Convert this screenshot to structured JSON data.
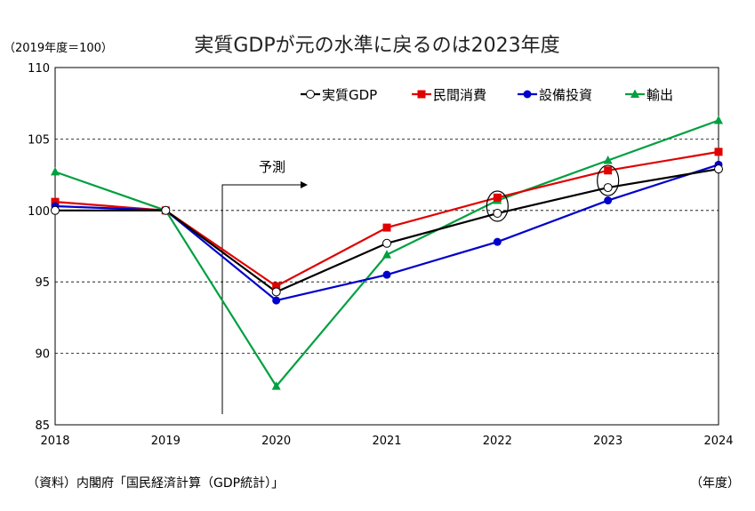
{
  "chart_data": {
    "type": "line",
    "title": "実質GDPが元の水準に戻るのは2023年度",
    "unit_note": "（2019年度＝100）",
    "x_unit": "（年度）",
    "source": "（資料）内閣府「国民経済計算（GDP統計）」",
    "forecast_label": "予測",
    "x": [
      "2018",
      "2019",
      "2020",
      "2021",
      "2022",
      "2023",
      "2024"
    ],
    "ylim": [
      85,
      110
    ],
    "yticks": [
      "85",
      "90",
      "95",
      "100",
      "105",
      "110"
    ],
    "grid": "horizontal-dashed",
    "legend_position": "top-right",
    "series": [
      {
        "name": "実質GDP",
        "color": "#000000",
        "marker": "circle-open",
        "values": [
          100.0,
          100.0,
          94.3,
          97.7,
          99.8,
          101.6,
          102.9
        ]
      },
      {
        "name": "民間消費",
        "color": "#e00000",
        "marker": "square",
        "values": [
          100.6,
          100.0,
          94.7,
          98.8,
          100.9,
          102.8,
          104.1
        ]
      },
      {
        "name": "設備投資",
        "color": "#0000cc",
        "marker": "circle",
        "values": [
          100.3,
          100.0,
          93.7,
          95.5,
          97.8,
          100.7,
          103.2
        ]
      },
      {
        "name": "輸出",
        "color": "#00a040",
        "marker": "triangle",
        "values": [
          102.7,
          100.0,
          87.7,
          96.9,
          100.7,
          103.5,
          106.3
        ]
      }
    ],
    "highlighted_points": [
      {
        "x": "2022",
        "series": "実質GDP"
      },
      {
        "x": "2023",
        "series": "実質GDP"
      }
    ]
  }
}
